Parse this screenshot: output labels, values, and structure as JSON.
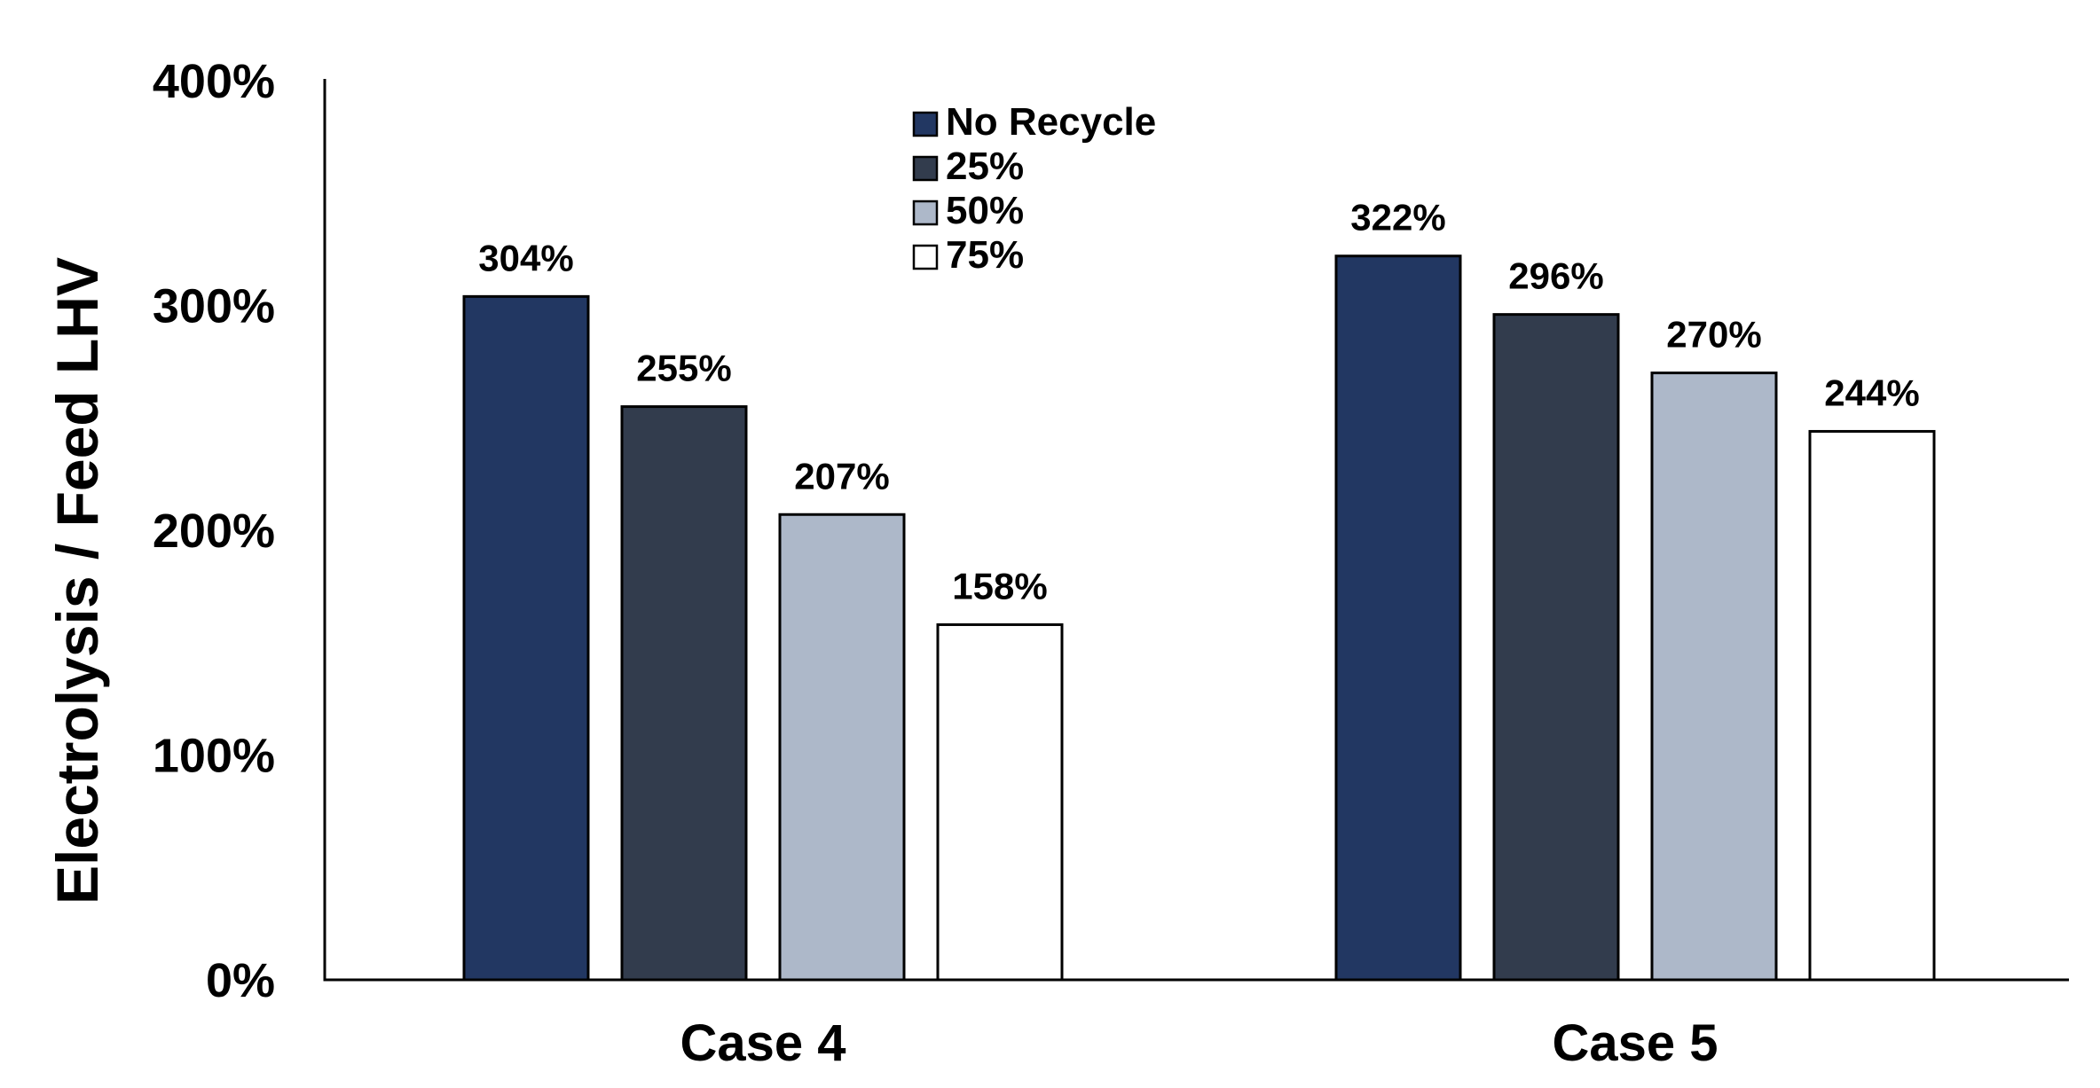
{
  "chart_data": {
    "type": "bar",
    "title": "",
    "xlabel": "",
    "ylabel": "Electrolysis / Feed LHV",
    "ylim": [
      0,
      400
    ],
    "y_ticks": [
      0,
      100,
      200,
      300,
      400
    ],
    "y_tick_labels": [
      "0%",
      "100%",
      "200%",
      "300%",
      "400%"
    ],
    "categories": [
      "Case 4",
      "Case 5"
    ],
    "series": [
      {
        "name": "No Recycle",
        "color": "#223762",
        "values": [
          304,
          322
        ],
        "labels": [
          "304%",
          "322%"
        ]
      },
      {
        "name": "25%",
        "color": "#323c4d",
        "values": [
          255,
          296
        ],
        "labels": [
          "255%",
          "296%"
        ]
      },
      {
        "name": "50%",
        "color": "#adb8c9",
        "values": [
          207,
          270
        ],
        "labels": [
          "207%",
          "270%"
        ]
      },
      {
        "name": "75%",
        "color": "#ffffff",
        "values": [
          158,
          244
        ],
        "labels": [
          "158%",
          "244%"
        ]
      }
    ],
    "legend_position": "top-center",
    "grid": false
  }
}
